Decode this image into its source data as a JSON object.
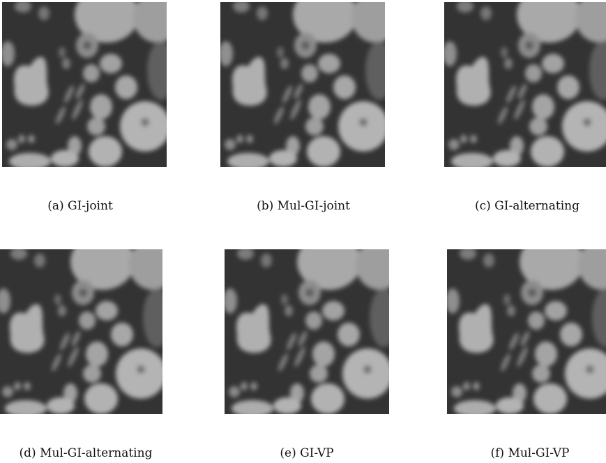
{
  "figure": {
    "panels": [
      {
        "caption": "(a) GI-joint"
      },
      {
        "caption": "(b) Mul-GI-joint"
      },
      {
        "caption": "(c) GI-alternating"
      },
      {
        "caption": "(d) Mul-GI-alternating"
      },
      {
        "caption": "(e) GI-VP"
      },
      {
        "caption": "(f) Mul-GI-VP"
      }
    ]
  }
}
